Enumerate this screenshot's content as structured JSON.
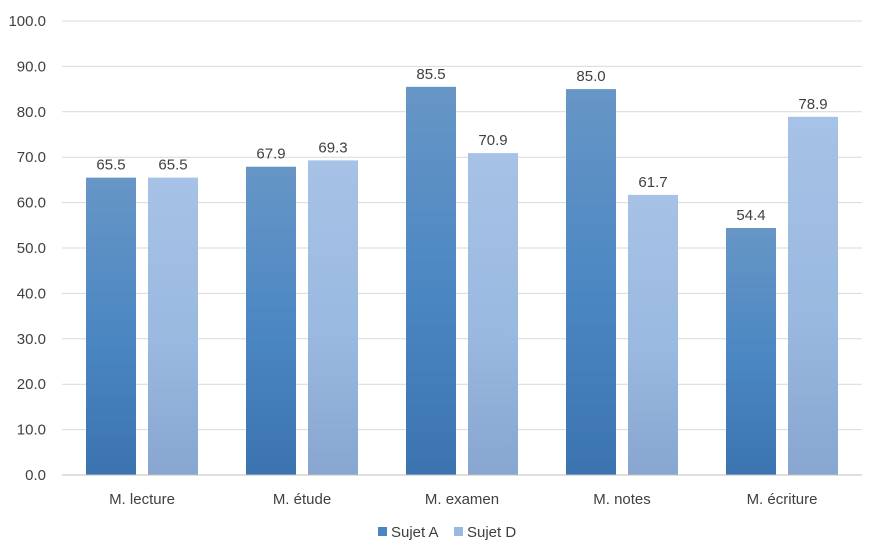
{
  "chart_data": {
    "type": "bar",
    "categories": [
      "M. lecture",
      "M. étude",
      "M. examen",
      "M. notes",
      "M. écriture"
    ],
    "series": [
      {
        "name": "Sujet A",
        "values": [
          65.5,
          67.9,
          85.5,
          85.0,
          54.4
        ],
        "color": "#4a86c2"
      },
      {
        "name": "Sujet D",
        "values": [
          65.5,
          69.3,
          70.9,
          61.7,
          78.9
        ],
        "color": "#9ab9e0"
      }
    ],
    "ylim": [
      0,
      100
    ],
    "yticks": [
      "0.0",
      "10.0",
      "20.0",
      "30.0",
      "40.0",
      "50.0",
      "60.0",
      "70.0",
      "80.0",
      "90.0",
      "100.0"
    ],
    "data_labels": [
      [
        "65.5",
        "67.9",
        "85.5",
        "85.0",
        "54.4"
      ],
      [
        "65.5",
        "69.3",
        "70.9",
        "61.7",
        "78.9"
      ]
    ],
    "grid": true,
    "legend": "bottom-center"
  }
}
